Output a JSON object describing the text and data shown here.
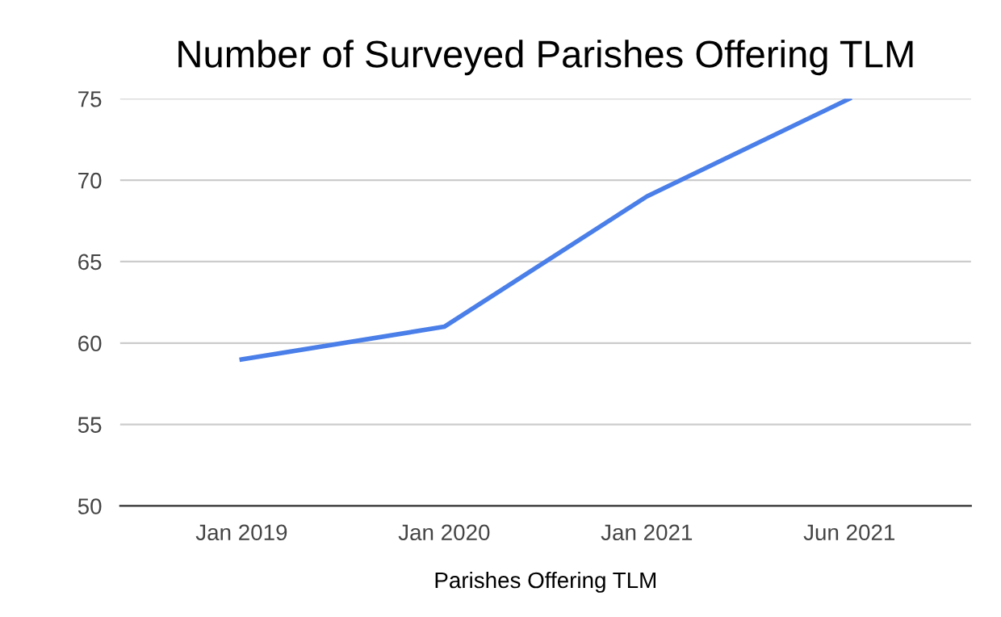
{
  "chart_data": {
    "type": "line",
    "title": "Number of Surveyed Parishes Offering TLM",
    "xlabel": "Parishes Offering TLM",
    "categories": [
      "Jan 2019",
      "Jan 2020",
      "Jan 2021",
      "Jun 2021"
    ],
    "series": [
      {
        "color": "#4a7ee8",
        "values": [
          59,
          61,
          69,
          75
        ]
      }
    ],
    "ylim": [
      50,
      75
    ],
    "yticks": [
      50,
      55,
      60,
      65,
      70,
      75
    ],
    "grid": "y"
  }
}
